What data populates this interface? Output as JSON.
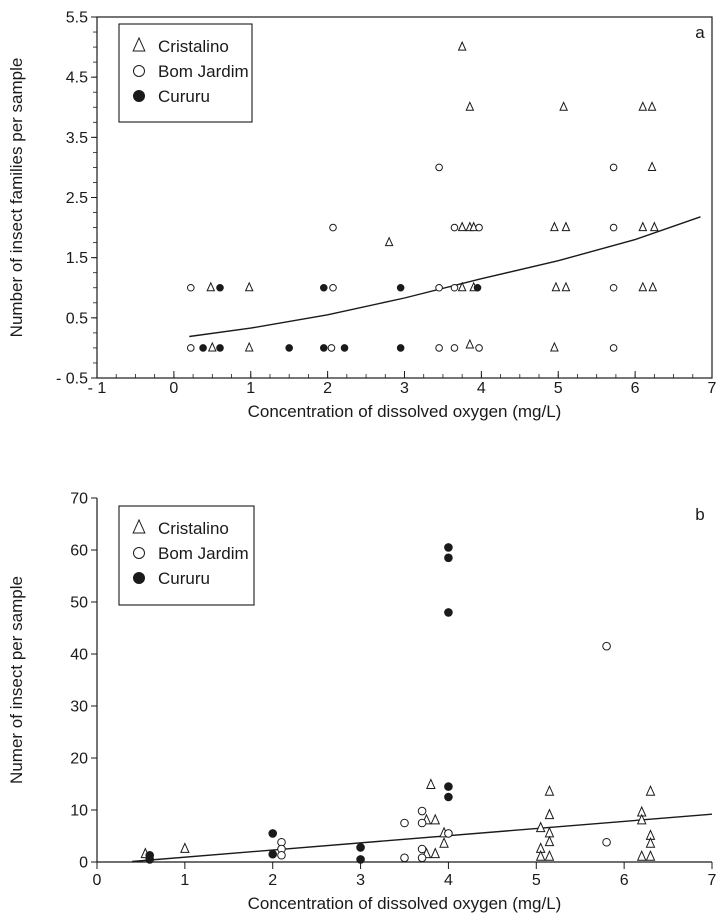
{
  "chart_data": [
    {
      "type": "scatter",
      "panel_label": "a",
      "xlabel": "Concentration of dissolved oxygen (mg/L)",
      "ylabel": "Number of insect families per sample",
      "xlim": [
        -1,
        7
      ],
      "ylim": [
        -0.5,
        5.5
      ],
      "xticks": [
        -1,
        0,
        1,
        2,
        3,
        4,
        5,
        6,
        7
      ],
      "xtick_labels": [
        "- 1",
        "0",
        "1",
        "2",
        "3",
        "4",
        "5",
        "6",
        "7"
      ],
      "yticks": [
        -0.5,
        0.5,
        1.5,
        2.5,
        3.5,
        4.5,
        5.5
      ],
      "ytick_labels": [
        "- 0.5",
        "0.5",
        "1.5",
        "2.5",
        "3.5",
        "4.5",
        "5.5"
      ],
      "grid": false,
      "legend_position": "top-left",
      "series": [
        {
          "name": "Cristalino",
          "marker": "open-triangle",
          "points": [
            [
              0.48,
              1
            ],
            [
              0.5,
              0
            ],
            [
              0.98,
              1
            ],
            [
              0.98,
              0
            ],
            [
              2.8,
              1.75
            ],
            [
              3.75,
              5
            ],
            [
              3.85,
              4
            ],
            [
              3.75,
              2
            ],
            [
              3.85,
              2
            ],
            [
              3.9,
              2
            ],
            [
              3.75,
              1
            ],
            [
              3.9,
              1
            ],
            [
              3.85,
              0.05
            ],
            [
              4.95,
              2
            ],
            [
              5.1,
              2
            ],
            [
              4.97,
              1
            ],
            [
              5.1,
              1
            ],
            [
              4.95,
              0
            ],
            [
              5.07,
              4
            ],
            [
              6.1,
              4
            ],
            [
              6.22,
              4
            ],
            [
              6.22,
              3
            ],
            [
              6.1,
              2
            ],
            [
              6.25,
              2
            ],
            [
              6.1,
              1
            ],
            [
              6.23,
              1
            ]
          ]
        },
        {
          "name": "Bom Jardim",
          "marker": "open-circle",
          "points": [
            [
              0.22,
              1
            ],
            [
              0.22,
              0
            ],
            [
              2.07,
              2
            ],
            [
              2.07,
              1
            ],
            [
              2.05,
              0
            ],
            [
              3.45,
              3
            ],
            [
              3.65,
              2
            ],
            [
              3.97,
              2
            ],
            [
              3.45,
              1
            ],
            [
              3.65,
              1
            ],
            [
              3.45,
              0
            ],
            [
              3.65,
              0
            ],
            [
              3.97,
              0
            ],
            [
              5.72,
              3
            ],
            [
              5.72,
              2
            ],
            [
              5.72,
              1
            ],
            [
              5.72,
              0
            ]
          ]
        },
        {
          "name": "Cururu",
          "marker": "filled-circle",
          "points": [
            [
              0.6,
              1
            ],
            [
              0.38,
              0
            ],
            [
              0.6,
              0
            ],
            [
              1.5,
              0
            ],
            [
              1.95,
              1
            ],
            [
              1.95,
              0
            ],
            [
              2.22,
              0
            ],
            [
              2.95,
              1
            ],
            [
              2.95,
              0
            ],
            [
              3.95,
              1
            ]
          ]
        }
      ],
      "trendline": {
        "type": "exponential",
        "x": [
          0.2,
          1,
          2,
          3,
          4,
          5,
          6,
          6.85
        ],
        "y": [
          0.19,
          0.33,
          0.55,
          0.83,
          1.15,
          1.45,
          1.8,
          2.18
        ]
      }
    },
    {
      "type": "scatter",
      "panel_label": "b",
      "xlabel": "Concentration of dissolved oxygen (mg/L)",
      "ylabel": "Numer of insect per sample",
      "xlim": [
        0,
        7
      ],
      "ylim": [
        0,
        70
      ],
      "xticks": [
        0,
        1,
        2,
        3,
        4,
        5,
        6,
        7
      ],
      "xtick_labels": [
        "0",
        "1",
        "2",
        "3",
        "4",
        "5",
        "6",
        "7"
      ],
      "yticks": [
        0,
        10,
        20,
        30,
        40,
        50,
        60,
        70
      ],
      "ytick_labels": [
        "0",
        "10",
        "20",
        "30",
        "40",
        "50",
        "60",
        "70"
      ],
      "grid": false,
      "legend_position": "top-left",
      "series": [
        {
          "name": "Cristalino",
          "marker": "open-triangle",
          "points": [
            [
              0.55,
              1.5
            ],
            [
              1.0,
              2.5
            ],
            [
              3.8,
              14.8
            ],
            [
              3.75,
              8
            ],
            [
              3.85,
              8
            ],
            [
              3.95,
              5.5
            ],
            [
              3.95,
              3.5
            ],
            [
              3.75,
              1.5
            ],
            [
              3.85,
              1.5
            ],
            [
              5.05,
              6.5
            ],
            [
              5.05,
              2.5
            ],
            [
              5.05,
              1
            ],
            [
              5.15,
              13.5
            ],
            [
              5.15,
              9
            ],
            [
              5.15,
              5.5
            ],
            [
              5.15,
              3.8
            ],
            [
              5.15,
              1
            ],
            [
              6.2,
              9.5
            ],
            [
              6.2,
              8
            ],
            [
              6.2,
              1
            ],
            [
              6.3,
              13.5
            ],
            [
              6.3,
              5
            ],
            [
              6.3,
              3.5
            ],
            [
              6.3,
              1
            ]
          ]
        },
        {
          "name": "Bom Jardim",
          "marker": "open-circle",
          "points": [
            [
              2.1,
              3.8
            ],
            [
              2.1,
              2.5
            ],
            [
              2.1,
              1.3
            ],
            [
              3.5,
              7.5
            ],
            [
              3.5,
              0.8
            ],
            [
              3.7,
              9.8
            ],
            [
              3.7,
              7.5
            ],
            [
              3.7,
              2.5
            ],
            [
              3.7,
              0.8
            ],
            [
              4.0,
              5.5
            ],
            [
              5.8,
              41.5
            ],
            [
              5.8,
              3.8
            ]
          ]
        },
        {
          "name": "Cururu",
          "marker": "filled-circle",
          "points": [
            [
              0.6,
              1.3
            ],
            [
              0.6,
              0.5
            ],
            [
              2.0,
              5.5
            ],
            [
              2.0,
              1.5
            ],
            [
              3.0,
              2.8
            ],
            [
              3.0,
              0.5
            ],
            [
              4.0,
              60.5
            ],
            [
              4.0,
              58.5
            ],
            [
              4.0,
              48
            ],
            [
              4.0,
              14.5
            ],
            [
              4.0,
              12.5
            ]
          ]
        }
      ],
      "trendline": {
        "type": "linear",
        "x": [
          0.4,
          7
        ],
        "y": [
          0.1,
          9.2
        ]
      }
    }
  ]
}
